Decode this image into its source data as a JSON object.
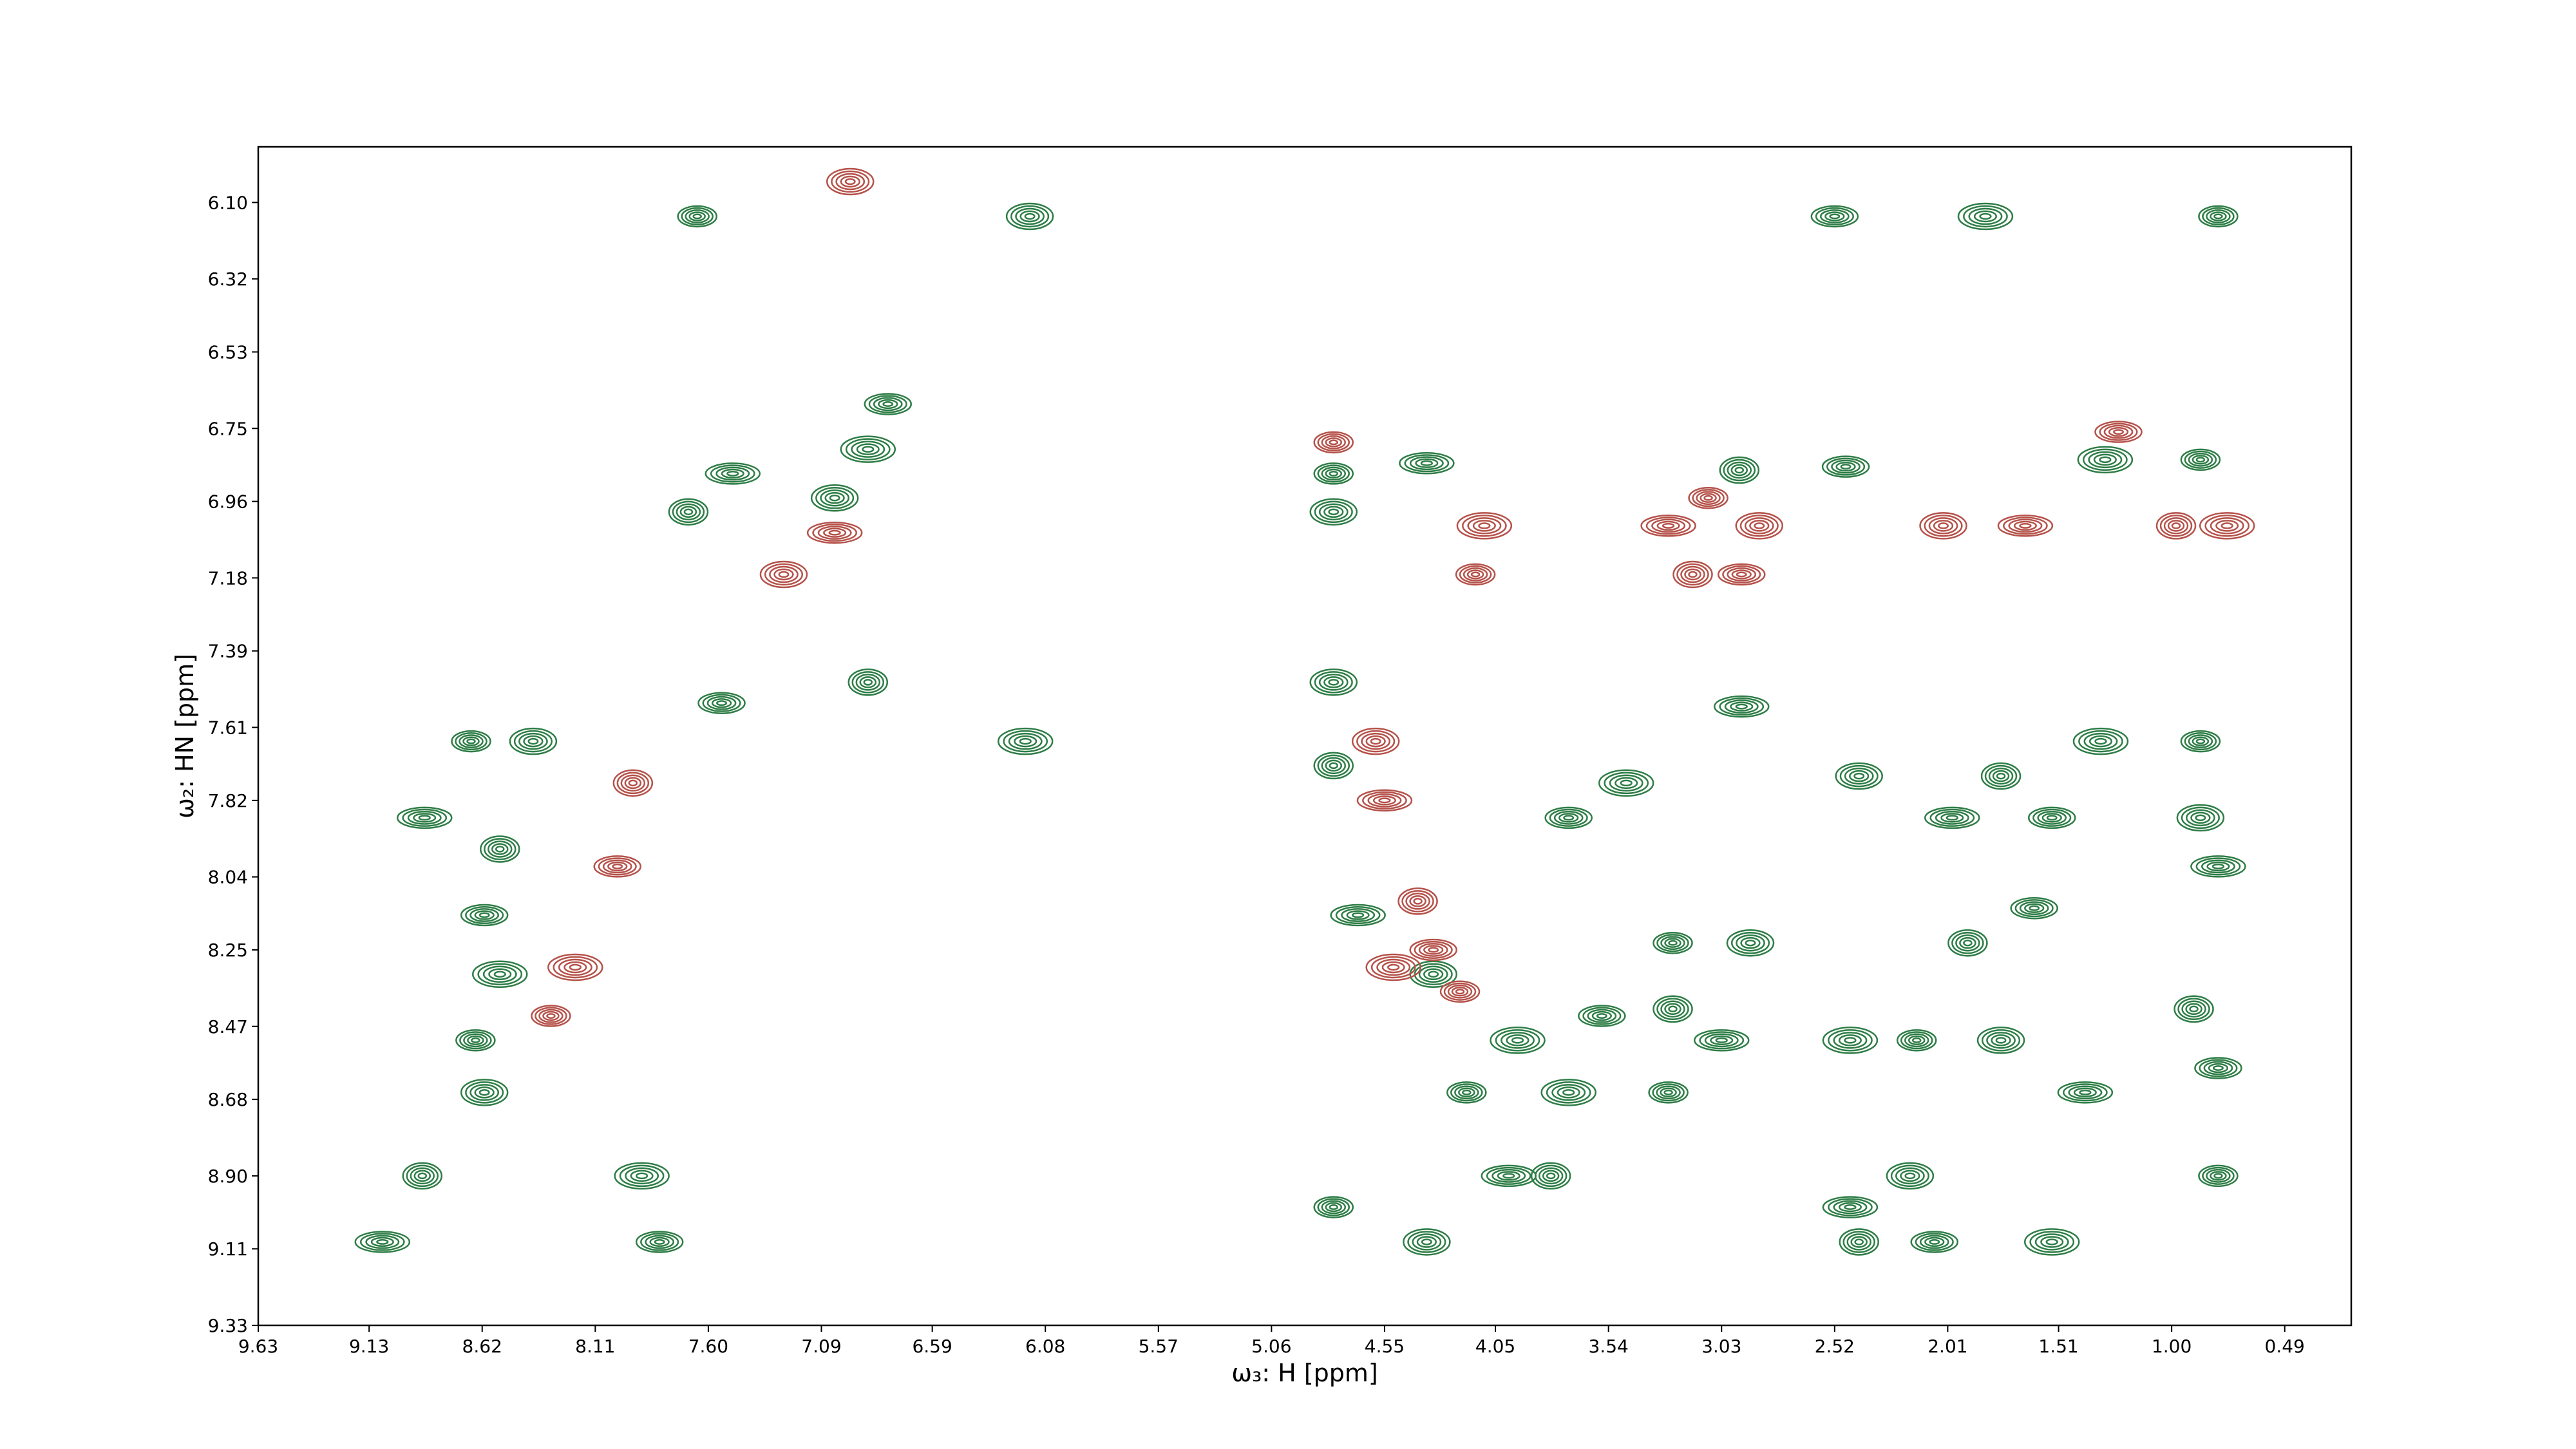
{
  "chart_data": {
    "type": "contour",
    "xlabel": "ω₃: H [ppm]",
    "ylabel": "ω₂: HN [ppm]",
    "xlim": [
      9.63,
      0.19
    ],
    "ylim": [
      9.33,
      5.94
    ],
    "xticks": [
      9.63,
      9.13,
      8.62,
      8.11,
      {
        "value": 7.6,
        "label": "7.60"
      },
      7.09,
      6.59,
      6.08,
      5.57,
      5.06,
      4.55,
      4.05,
      3.54,
      3.03,
      2.52,
      2.01,
      1.51,
      {
        "value": 1.0,
        "label": "1.00"
      },
      0.49
    ],
    "yticks": [
      {
        "value": 6.1,
        "label": "6.10"
      },
      6.32,
      6.53,
      6.75,
      6.96,
      7.18,
      7.39,
      7.61,
      7.82,
      8.04,
      8.25,
      8.47,
      8.68,
      {
        "value": 8.9,
        "label": "8.90"
      },
      9.11,
      9.33
    ],
    "grid": false,
    "series": [
      {
        "color": "#2e7d46",
        "x": [
          7.65,
          6.15,
          7.49,
          7.69,
          6.79,
          6.88,
          4.78,
          4.78,
          4.36,
          2.95,
          2.47,
          1.3,
          0.87,
          4.78,
          2.94,
          6.88,
          7.54,
          6.17,
          8.67,
          8.39,
          8.88,
          8.54,
          8.61,
          8.54,
          8.65,
          8.61,
          9.07,
          8.89,
          7.82,
          7.9,
          4.78,
          4.36,
          3.99,
          3.8,
          3.72,
          3.46,
          3.25,
          2.9,
          3.03,
          3.25,
          3.57,
          3.72,
          3.27,
          2.41,
          1.99,
          1.77,
          1.54,
          1.32,
          0.87,
          0.87,
          0.79,
          0.9,
          0.79,
          2.45,
          2.15,
          1.77,
          1.39,
          2.41,
          2.07,
          1.54,
          0.79,
          2.18,
          2.45,
          1.92,
          1.62,
          3.95,
          4.18,
          4.33,
          4.67,
          4.78,
          2.52,
          1.84,
          0.79,
          7.03
        ],
        "y": [
          6.14,
          6.14,
          6.88,
          6.99,
          6.68,
          6.81,
          6.88,
          6.99,
          6.85,
          6.87,
          6.86,
          6.84,
          6.84,
          7.48,
          7.55,
          7.48,
          7.54,
          7.65,
          7.65,
          7.65,
          7.87,
          7.96,
          8.15,
          8.32,
          8.51,
          8.66,
          9.09,
          8.9,
          9.09,
          8.9,
          8.99,
          9.09,
          8.9,
          8.9,
          7.87,
          7.77,
          8.23,
          8.23,
          8.51,
          8.42,
          8.44,
          8.66,
          8.66,
          7.75,
          7.87,
          7.75,
          7.87,
          7.65,
          7.65,
          7.87,
          8.01,
          8.42,
          8.59,
          8.51,
          8.51,
          8.51,
          8.66,
          9.09,
          9.09,
          9.09,
          8.9,
          8.9,
          8.99,
          8.23,
          8.13,
          8.51,
          8.66,
          8.32,
          8.15,
          7.72,
          6.14,
          6.14,
          6.14,
          6.95
        ]
      },
      {
        "color": "#b5524a",
        "x": [
          3.09,
          2.86,
          3.27,
          3.16,
          2.94,
          4.1,
          4.14,
          2.03,
          1.66,
          0.98,
          1.24,
          0.75,
          4.78,
          7.26,
          7.03,
          7.94,
          8.01,
          8.2,
          8.31,
          4.59,
          4.55,
          4.4,
          4.33,
          4.51,
          4.21,
          6.96
        ],
        "y": [
          6.95,
          7.03,
          7.03,
          7.17,
          7.17,
          7.03,
          7.17,
          7.03,
          7.03,
          7.03,
          6.76,
          7.03,
          6.79,
          7.17,
          7.05,
          7.77,
          8.01,
          8.3,
          8.44,
          7.65,
          7.82,
          8.11,
          8.25,
          8.3,
          8.37,
          6.04
        ]
      }
    ]
  }
}
